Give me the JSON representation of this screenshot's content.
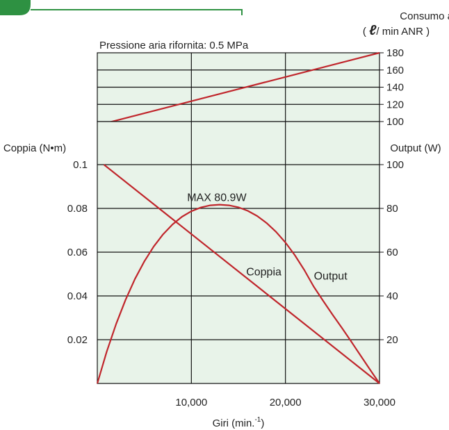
{
  "colors": {
    "plot_background": "#e8f3e9",
    "grid": "#111111",
    "series_line": "#c0252b",
    "brand_green": "#2e9142"
  },
  "header_badge": {
    "shape": "green-tab",
    "visible": true
  },
  "chart_data": [
    {
      "type": "line",
      "panel": "upper",
      "title": "Pressione aria rifornita: 0.5 MPa",
      "xlabel": "",
      "ylabel_right": {
        "line1": "Consumo aria",
        "line2_prefix": "( ",
        "line2_symbol": "ℓ",
        "line2_suffix": "/ min ANR )"
      },
      "xlim": [
        0,
        30000
      ],
      "ylim": [
        100,
        180
      ],
      "yticks": [
        100,
        120,
        140,
        160,
        180
      ],
      "ytick_labels": [
        "100",
        "120",
        "140",
        "160",
        "180"
      ],
      "grid": true,
      "series": [
        {
          "x": [
            500,
            30000
          ],
          "y": [
            97,
            180
          ]
        }
      ]
    },
    {
      "type": "line",
      "panel": "lower",
      "xlabel": {
        "text": "Giri (min.",
        "superscript": "-1",
        "suffix": ")"
      },
      "ylabel_left": "Coppia (N•m)",
      "ylabel_right": "Output (W)",
      "xlim": [
        0,
        30000
      ],
      "xticks": [
        10000,
        20000,
        30000
      ],
      "xtick_labels": [
        "10,000",
        "20,000",
        "30,000"
      ],
      "ylim_left": [
        0,
        0.1
      ],
      "yticks_left": [
        0.02,
        0.04,
        0.06,
        0.08,
        0.1
      ],
      "ytick_labels_left": [
        "0.02",
        "0.04",
        "0.06",
        "0.08",
        "0.1"
      ],
      "ylim_right": [
        0,
        100
      ],
      "yticks_right": [
        20,
        40,
        60,
        80,
        100
      ],
      "ytick_labels_right": [
        "20",
        "40",
        "60",
        "80",
        "100"
      ],
      "grid": true,
      "series": [
        {
          "name": "Coppia",
          "axis": "left",
          "x": [
            700,
            30000
          ],
          "y": [
            0.1,
            0.0
          ]
        },
        {
          "name": "Output",
          "axis": "right",
          "x": [
            0,
            1000,
            2000,
            3000,
            4000,
            5000,
            6000,
            7000,
            8000,
            9000,
            10000,
            11000,
            12000,
            13000,
            14000,
            15000,
            16000,
            17000,
            18000,
            19000,
            20000,
            21000,
            22000,
            23000,
            24000,
            25000,
            26000,
            27000,
            28000,
            29000,
            30000
          ],
          "y": [
            0,
            14.5,
            27.2,
            38.2,
            47.7,
            55.8,
            62.6,
            68.2,
            72.7,
            76.2,
            78.7,
            80.4,
            81.4,
            81.7,
            81.4,
            80.5,
            78.9,
            76.5,
            73.3,
            69.3,
            64.4,
            58.6,
            51.9,
            44.3,
            37.8,
            31.5,
            25.4,
            19.1,
            12.7,
            6.3,
            0
          ]
        }
      ],
      "annotations": [
        {
          "text": "MAX 80.9W",
          "x": 12700,
          "y": 85
        },
        {
          "text": "Coppia",
          "x": 17700,
          "y": 51,
          "axis": "right"
        },
        {
          "text": "Output",
          "x": 24800,
          "y": 49,
          "axis": "right"
        }
      ]
    }
  ]
}
